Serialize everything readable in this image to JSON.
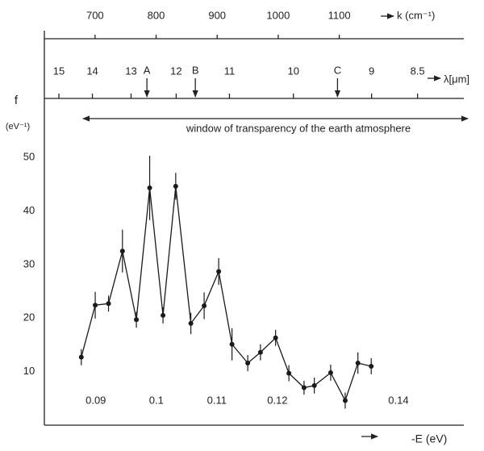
{
  "chart_data": {
    "type": "line",
    "x_label": "-E (eV)",
    "y_label": "f",
    "y_unit": "(eV⁻¹)",
    "annotation": "window of transparency of the earth  atmosphere",
    "x": [
      0.0876,
      0.0899,
      0.0921,
      0.0944,
      0.0967,
      0.0989,
      0.1011,
      0.1032,
      0.1057,
      0.1079,
      0.1103,
      0.1125,
      0.1151,
      0.1172,
      0.1197,
      0.1219,
      0.1244,
      0.1261,
      0.1288,
      0.1312,
      0.1333,
      0.1355
    ],
    "values": [
      12.7,
      22.4,
      22.7,
      32.5,
      19.7,
      44.3,
      20.5,
      44.6,
      19,
      22.3,
      28.7,
      15.1,
      11.6,
      13.6,
      16.3,
      9.7,
      7,
      7.4,
      9.8,
      4.6,
      11.6,
      11
    ],
    "errors": [
      1.5,
      2.5,
      1.5,
      4,
      1.5,
      6,
      1.5,
      2.5,
      2,
      2.5,
      2.5,
      3,
      1.5,
      1.5,
      1.5,
      1.5,
      1.3,
      1.5,
      1.5,
      1.5,
      2,
      1.5
    ],
    "color": "#1a1a1a",
    "xlim": [
      0.0815,
      0.1508
    ],
    "ylim": [
      0,
      61
    ],
    "xticks": [
      0.09,
      0.1,
      0.11,
      0.12,
      0.14
    ],
    "yticks": [
      10,
      20,
      30,
      40,
      50
    ],
    "top_axis": {
      "label": "k (cm⁻¹)",
      "lim": [
        617,
        1304
      ],
      "ticks": [
        700,
        800,
        900,
        1000,
        1100
      ]
    },
    "lambda_axis": {
      "label": "λ[μm]",
      "scale": "reciprocal",
      "lim": [
        15.48,
        8.05
      ],
      "ticks": [
        15,
        14,
        13,
        12,
        11,
        10,
        9,
        8.5
      ],
      "markers": [
        {
          "label": "A",
          "value": 12.63
        },
        {
          "label": "B",
          "value": 11.62
        },
        {
          "label": "C",
          "value": 9.41
        }
      ]
    }
  }
}
